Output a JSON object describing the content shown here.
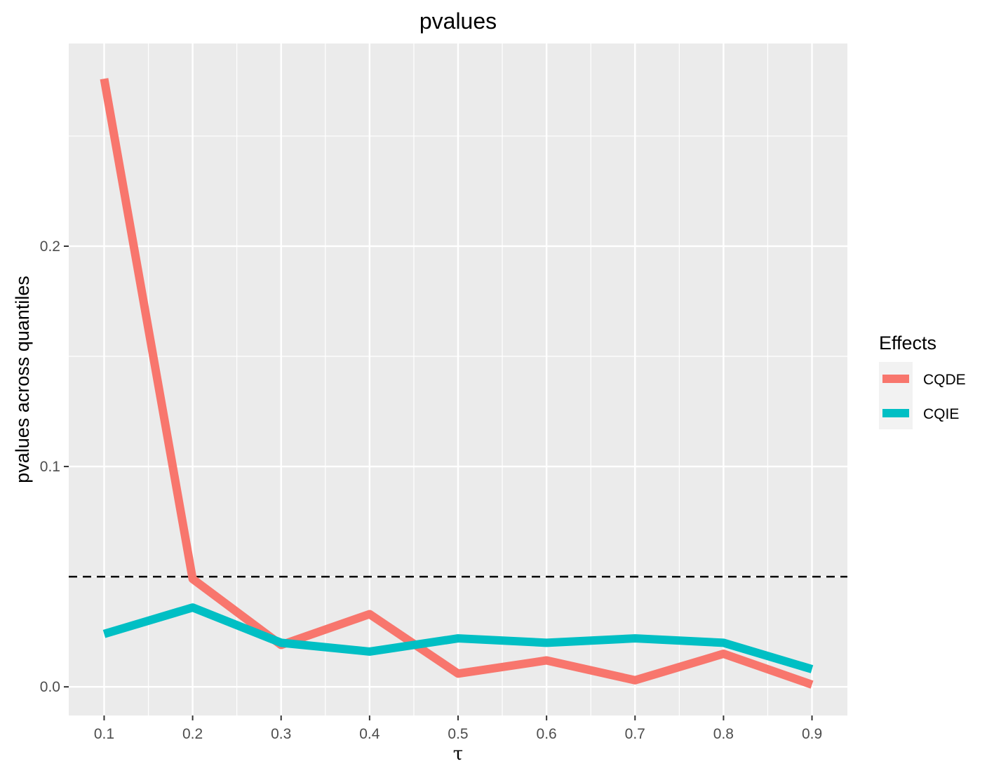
{
  "chart_data": {
    "type": "line",
    "title": "pvalues",
    "xlabel": "τ",
    "ylabel": "pvalues across quantiles",
    "x": [
      0.1,
      0.2,
      0.3,
      0.4,
      0.5,
      0.6,
      0.7,
      0.8,
      0.9
    ],
    "x_ticks": [
      "0.1",
      "0.2",
      "0.3",
      "0.4",
      "0.5",
      "0.6",
      "0.7",
      "0.8",
      "0.9"
    ],
    "y_ticks": [
      "0.0",
      "0.1",
      "0.2"
    ],
    "y_tick_values": [
      0.0,
      0.1,
      0.2
    ],
    "xlim": [
      0.06,
      0.94
    ],
    "ylim": [
      -0.013,
      0.292
    ],
    "reference_line": {
      "y": 0.05,
      "style": "dashed",
      "color": "#000000"
    },
    "legend": {
      "title": "Effects",
      "position": "right"
    },
    "series": [
      {
        "name": "CQDE",
        "color": "#F8766D",
        "values": [
          0.276,
          0.049,
          0.019,
          0.033,
          0.006,
          0.012,
          0.003,
          0.015,
          0.001
        ]
      },
      {
        "name": "CQIE",
        "color": "#00BFC4",
        "values": [
          0.024,
          0.036,
          0.02,
          0.016,
          0.022,
          0.02,
          0.022,
          0.02,
          0.008
        ]
      }
    ],
    "grid": true,
    "panel_background": "#EBEBEB"
  }
}
